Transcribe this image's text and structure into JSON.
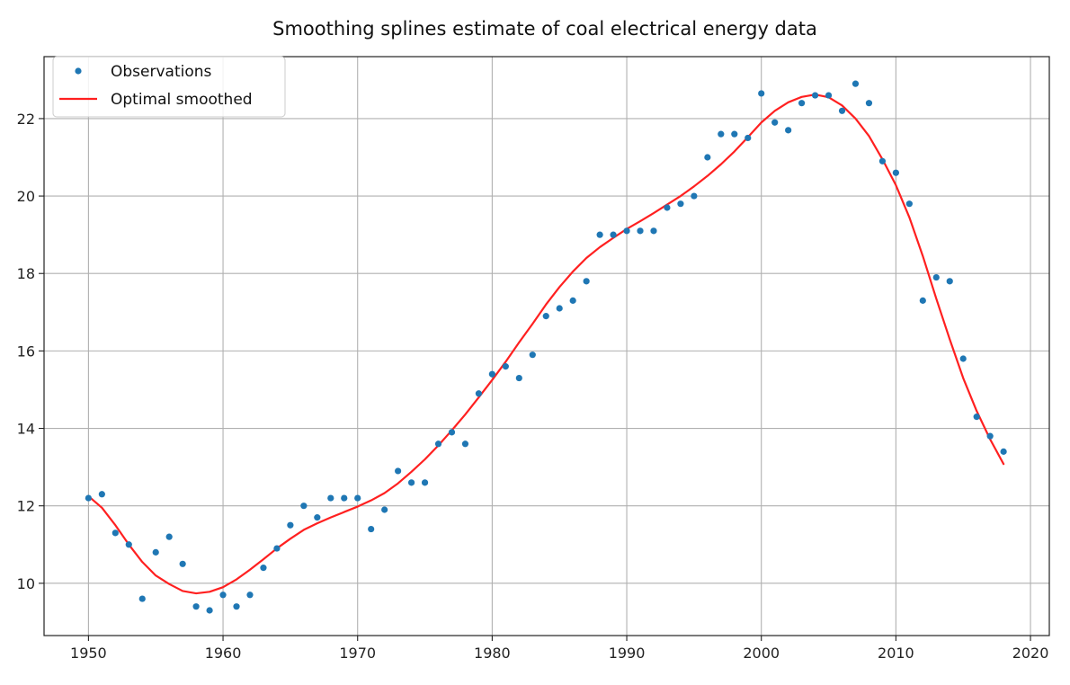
{
  "chart_data": {
    "type": "scatter",
    "title": "Smoothing splines estimate of coal electrical energy data",
    "xlabel": "",
    "ylabel": "",
    "xlim": [
      1946.7,
      2021.4
    ],
    "ylim": [
      8.65,
      23.6
    ],
    "xticks": [
      1950,
      1960,
      1970,
      1980,
      1990,
      2000,
      2010,
      2020
    ],
    "yticks": [
      10,
      12,
      14,
      16,
      18,
      20,
      22
    ],
    "grid": true,
    "legend": {
      "position": "top-left"
    },
    "colors": {
      "observations": "#1f77b4",
      "smoothed": "#ff2020",
      "grid": "#b0b0b0",
      "axes": "#222222"
    },
    "series": [
      {
        "name": "Observations",
        "kind": "scatter",
        "x": [
          1950,
          1951,
          1952,
          1953,
          1954,
          1955,
          1956,
          1957,
          1958,
          1959,
          1960,
          1961,
          1962,
          1963,
          1964,
          1965,
          1966,
          1967,
          1968,
          1969,
          1970,
          1971,
          1972,
          1973,
          1974,
          1975,
          1976,
          1977,
          1978,
          1979,
          1980,
          1981,
          1982,
          1983,
          1984,
          1985,
          1986,
          1987,
          1988,
          1989,
          1990,
          1991,
          1992,
          1993,
          1994,
          1995,
          1996,
          1997,
          1998,
          1999,
          2000,
          2001,
          2002,
          2003,
          2004,
          2005,
          2006,
          2007,
          2008,
          2009,
          2010,
          2011,
          2012,
          2013,
          2014,
          2015,
          2016,
          2017,
          2018
        ],
        "y": [
          12.2,
          12.3,
          11.3,
          11.0,
          9.6,
          10.8,
          11.2,
          10.5,
          9.4,
          9.3,
          9.7,
          9.4,
          9.7,
          10.4,
          10.9,
          11.5,
          12.0,
          11.7,
          12.2,
          12.2,
          12.2,
          11.4,
          11.9,
          12.9,
          12.6,
          12.6,
          13.6,
          13.9,
          13.6,
          14.9,
          15.4,
          15.6,
          15.3,
          15.9,
          16.9,
          17.1,
          17.3,
          17.8,
          19.0,
          19.0,
          19.1,
          19.1,
          19.1,
          19.7,
          19.8,
          20.0,
          21.0,
          21.6,
          21.6,
          21.5,
          22.65,
          21.9,
          21.7,
          22.4,
          22.6,
          22.6,
          22.2,
          22.9,
          22.4,
          20.9,
          20.6,
          19.8,
          17.3,
          17.9,
          17.8,
          15.8,
          14.3,
          13.8,
          13.4
        ]
      },
      {
        "name": "Optimal smoothed",
        "kind": "line",
        "x": [
          1950,
          1951,
          1952,
          1953,
          1954,
          1955,
          1956,
          1957,
          1958,
          1959,
          1960,
          1961,
          1962,
          1963,
          1964,
          1965,
          1966,
          1967,
          1968,
          1969,
          1970,
          1971,
          1972,
          1973,
          1974,
          1975,
          1976,
          1977,
          1978,
          1979,
          1980,
          1981,
          1982,
          1983,
          1984,
          1985,
          1986,
          1987,
          1988,
          1989,
          1990,
          1991,
          1992,
          1993,
          1994,
          1995,
          1996,
          1997,
          1998,
          1999,
          2000,
          2001,
          2002,
          2003,
          2004,
          2005,
          2006,
          2007,
          2008,
          2009,
          2010,
          2011,
          2012,
          2013,
          2014,
          2015,
          2016,
          2017,
          2018
        ],
        "y": [
          12.25,
          11.95,
          11.5,
          11.0,
          10.55,
          10.2,
          9.98,
          9.8,
          9.74,
          9.78,
          9.9,
          10.1,
          10.35,
          10.62,
          10.9,
          11.15,
          11.38,
          11.55,
          11.7,
          11.84,
          11.98,
          12.14,
          12.33,
          12.58,
          12.88,
          13.2,
          13.56,
          13.95,
          14.36,
          14.8,
          15.25,
          15.72,
          16.22,
          16.7,
          17.2,
          17.65,
          18.05,
          18.4,
          18.68,
          18.92,
          19.15,
          19.35,
          19.56,
          19.78,
          20.0,
          20.25,
          20.52,
          20.82,
          21.15,
          21.52,
          21.9,
          22.2,
          22.42,
          22.56,
          22.62,
          22.55,
          22.34,
          22.0,
          21.55,
          20.95,
          20.28,
          19.45,
          18.45,
          17.35,
          16.3,
          15.3,
          14.45,
          13.72,
          13.08
        ]
      }
    ]
  }
}
